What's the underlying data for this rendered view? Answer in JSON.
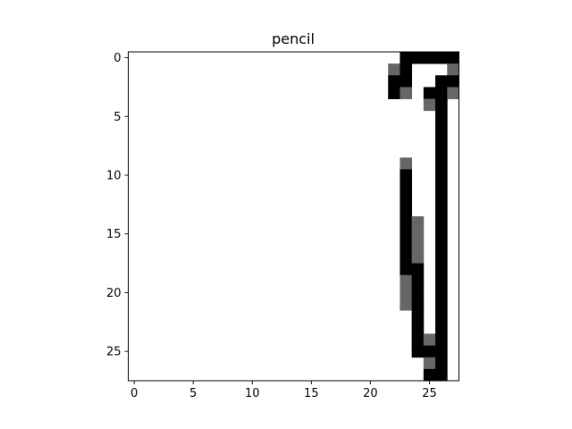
{
  "chart_data": {
    "type": "heatmap",
    "title": "pencil",
    "xlabel": "",
    "ylabel": "",
    "colormap": "gray_r",
    "value_range": [
      0,
      1
    ],
    "rows": 28,
    "cols": 28,
    "xticks": [
      0,
      5,
      10,
      15,
      20,
      25
    ],
    "yticks": [
      0,
      5,
      10,
      15,
      20,
      25
    ],
    "xlim": [
      -0.5,
      27.5
    ],
    "ylim": [
      27.5,
      -0.5
    ],
    "grid": false,
    "cells": [
      {
        "row": 0,
        "col": 23,
        "value": 1
      },
      {
        "row": 0,
        "col": 24,
        "value": 1
      },
      {
        "row": 0,
        "col": 25,
        "value": 1
      },
      {
        "row": 0,
        "col": 26,
        "value": 1
      },
      {
        "row": 0,
        "col": 27,
        "value": 1
      },
      {
        "row": 1,
        "col": 22,
        "value": 0.6
      },
      {
        "row": 1,
        "col": 23,
        "value": 1
      },
      {
        "row": 1,
        "col": 27,
        "value": 0.6
      },
      {
        "row": 2,
        "col": 22,
        "value": 1
      },
      {
        "row": 2,
        "col": 23,
        "value": 1
      },
      {
        "row": 2,
        "col": 26,
        "value": 1
      },
      {
        "row": 2,
        "col": 27,
        "value": 1
      },
      {
        "row": 3,
        "col": 22,
        "value": 1
      },
      {
        "row": 3,
        "col": 23,
        "value": 0.6
      },
      {
        "row": 3,
        "col": 25,
        "value": 1
      },
      {
        "row": 3,
        "col": 26,
        "value": 1
      },
      {
        "row": 3,
        "col": 27,
        "value": 0.6
      },
      {
        "row": 4,
        "col": 25,
        "value": 0.6
      },
      {
        "row": 4,
        "col": 26,
        "value": 1
      },
      {
        "row": 5,
        "col": 26,
        "value": 1
      },
      {
        "row": 6,
        "col": 26,
        "value": 1
      },
      {
        "row": 7,
        "col": 26,
        "value": 1
      },
      {
        "row": 8,
        "col": 26,
        "value": 1
      },
      {
        "row": 9,
        "col": 23,
        "value": 0.6
      },
      {
        "row": 9,
        "col": 26,
        "value": 1
      },
      {
        "row": 10,
        "col": 23,
        "value": 1
      },
      {
        "row": 10,
        "col": 26,
        "value": 1
      },
      {
        "row": 11,
        "col": 23,
        "value": 1
      },
      {
        "row": 11,
        "col": 26,
        "value": 1
      },
      {
        "row": 12,
        "col": 23,
        "value": 1
      },
      {
        "row": 12,
        "col": 26,
        "value": 1
      },
      {
        "row": 13,
        "col": 23,
        "value": 1
      },
      {
        "row": 13,
        "col": 26,
        "value": 1
      },
      {
        "row": 14,
        "col": 23,
        "value": 1
      },
      {
        "row": 14,
        "col": 24,
        "value": 0.6
      },
      {
        "row": 14,
        "col": 26,
        "value": 1
      },
      {
        "row": 15,
        "col": 23,
        "value": 1
      },
      {
        "row": 15,
        "col": 24,
        "value": 0.6
      },
      {
        "row": 15,
        "col": 26,
        "value": 1
      },
      {
        "row": 16,
        "col": 23,
        "value": 1
      },
      {
        "row": 16,
        "col": 24,
        "value": 0.6
      },
      {
        "row": 16,
        "col": 26,
        "value": 1
      },
      {
        "row": 17,
        "col": 23,
        "value": 1
      },
      {
        "row": 17,
        "col": 24,
        "value": 0.6
      },
      {
        "row": 17,
        "col": 26,
        "value": 1
      },
      {
        "row": 18,
        "col": 23,
        "value": 1
      },
      {
        "row": 18,
        "col": 24,
        "value": 1
      },
      {
        "row": 18,
        "col": 26,
        "value": 1
      },
      {
        "row": 19,
        "col": 23,
        "value": 0.6
      },
      {
        "row": 19,
        "col": 24,
        "value": 1
      },
      {
        "row": 19,
        "col": 26,
        "value": 1
      },
      {
        "row": 20,
        "col": 23,
        "value": 0.6
      },
      {
        "row": 20,
        "col": 24,
        "value": 1
      },
      {
        "row": 20,
        "col": 26,
        "value": 1
      },
      {
        "row": 21,
        "col": 23,
        "value": 0.6
      },
      {
        "row": 21,
        "col": 24,
        "value": 1
      },
      {
        "row": 21,
        "col": 26,
        "value": 1
      },
      {
        "row": 22,
        "col": 24,
        "value": 1
      },
      {
        "row": 22,
        "col": 26,
        "value": 1
      },
      {
        "row": 23,
        "col": 24,
        "value": 1
      },
      {
        "row": 23,
        "col": 26,
        "value": 1
      },
      {
        "row": 24,
        "col": 24,
        "value": 1
      },
      {
        "row": 24,
        "col": 25,
        "value": 0.6
      },
      {
        "row": 24,
        "col": 26,
        "value": 1
      },
      {
        "row": 25,
        "col": 24,
        "value": 1
      },
      {
        "row": 25,
        "col": 25,
        "value": 1
      },
      {
        "row": 25,
        "col": 26,
        "value": 1
      },
      {
        "row": 26,
        "col": 25,
        "value": 0.6
      },
      {
        "row": 26,
        "col": 26,
        "value": 1
      },
      {
        "row": 27,
        "col": 25,
        "value": 1
      },
      {
        "row": 27,
        "col": 26,
        "value": 1
      }
    ]
  }
}
